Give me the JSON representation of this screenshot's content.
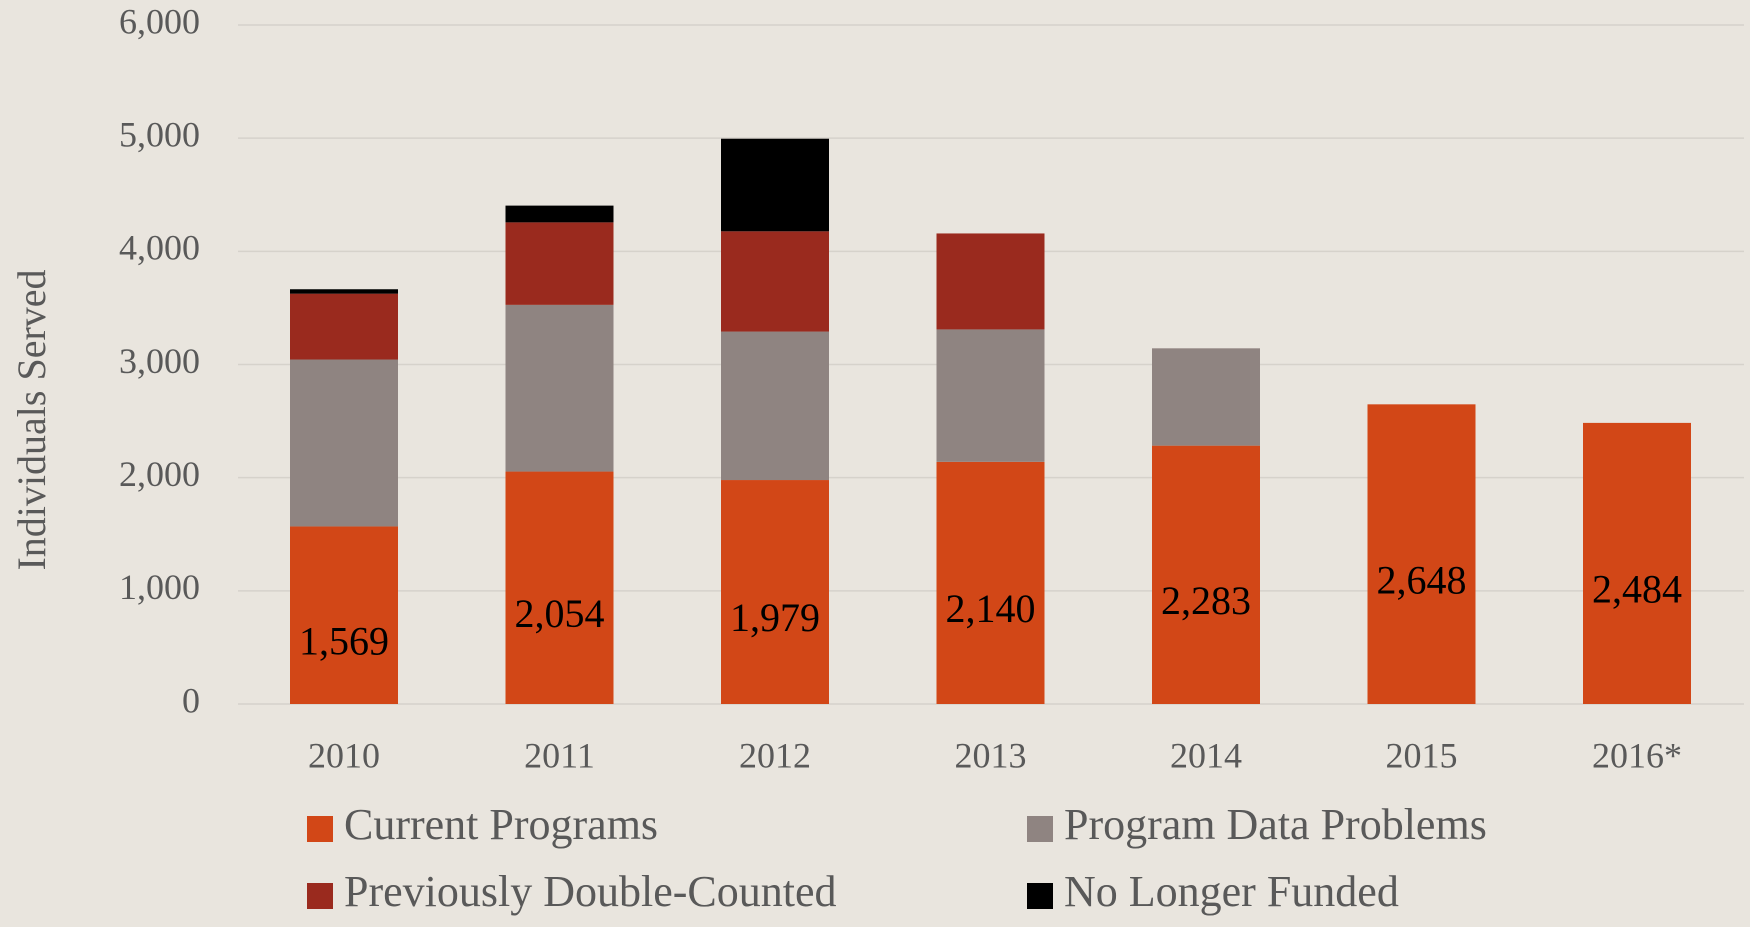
{
  "chart_data": {
    "type": "stacked_bar",
    "y_label": "Individuals Served",
    "categories": [
      "2010",
      "2011",
      "2012",
      "2013",
      "2014",
      "2015",
      "2016*"
    ],
    "series": [
      {
        "name": "Current Programs",
        "color": "#d24717",
        "values": [
          1569,
          2054,
          1979,
          2140,
          2283,
          2648,
          2484
        ],
        "value_labels": [
          "1,569",
          "2,054",
          "1,979",
          "2,140",
          "2,283",
          "2,648",
          "2,484"
        ]
      },
      {
        "name": "Program Data Problems",
        "color": "#8f8481",
        "values": [
          1475,
          1473,
          1312,
          1170,
          860,
          null,
          null
        ]
      },
      {
        "name": "Previously Double-Counted",
        "color": "#9a2a1e",
        "values": [
          582,
          729,
          886,
          848,
          null,
          null,
          null
        ]
      },
      {
        "name": "No Longer Funded",
        "color": "#000000",
        "values": [
          39,
          148,
          818,
          null,
          null,
          null,
          null
        ]
      }
    ],
    "ylim": [
      0,
      6000
    ],
    "yticks": [
      {
        "value": 0,
        "label": "0"
      },
      {
        "value": 1000,
        "label": "1,000"
      },
      {
        "value": 2000,
        "label": "2,000"
      },
      {
        "value": 3000,
        "label": "3,000"
      },
      {
        "value": 4000,
        "label": "4,000"
      },
      {
        "value": 5000,
        "label": "5,000"
      },
      {
        "value": 6000,
        "label": "6,000"
      }
    ],
    "grid": true
  }
}
